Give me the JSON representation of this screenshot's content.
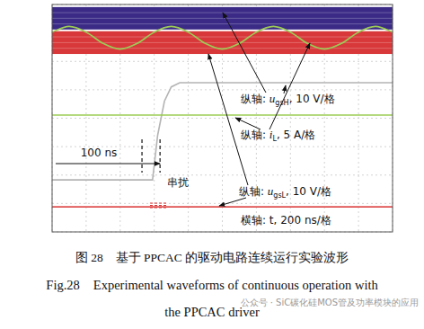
{
  "chart_data": {
    "type": "oscilloscope",
    "xlim": [
      0,
      10
    ],
    "ylim": [
      -4,
      4
    ],
    "xticks": [
      0,
      1,
      2,
      3,
      4,
      5,
      6,
      7,
      8,
      9,
      10
    ],
    "yticks": [
      -4,
      -3,
      -2,
      -1,
      0,
      1,
      2,
      3,
      4
    ],
    "grid": true,
    "tick_labels": false,
    "series": [
      {
        "type": "band",
        "color": "#3b2b86",
        "x": [
          0,
          10
        ],
        "low": [
          3.12,
          3.12
        ],
        "high": [
          3.91,
          3.91
        ]
      },
      {
        "type": "band",
        "color": "#d8383a",
        "x": [
          0,
          10
        ],
        "low": [
          2.26,
          2.26
        ],
        "high": [
          3.06,
          3.06
        ]
      },
      {
        "type": "line",
        "color": "#9ccc55",
        "x": [
          0,
          0.5,
          1,
          1.5,
          2,
          2.5,
          3,
          3.5,
          4,
          4.5,
          5,
          5.5,
          6,
          6.5,
          7,
          7.5,
          8,
          8.5,
          9,
          9.5,
          10
        ],
        "values": [
          3.03,
          3.23,
          3.03,
          2.63,
          2.43,
          2.63,
          3.03,
          3.23,
          3.03,
          2.63,
          2.43,
          2.63,
          3.03,
          3.23,
          3.03,
          2.63,
          2.43,
          2.63,
          3.03,
          3.23,
          3.03
        ]
      },
      {
        "type": "line",
        "color": "#b4b4b4",
        "x": [
          0,
          2.95,
          3.1,
          3.3,
          3.5,
          3.75,
          10
        ],
        "values": [
          -2.17,
          -2.17,
          -0.6,
          0.6,
          1.1,
          1.25,
          1.25
        ]
      },
      {
        "type": "line",
        "color": "#9ccc55",
        "x": [
          0,
          10
        ],
        "values": [
          0.11,
          0.11
        ]
      },
      {
        "type": "line",
        "color": "#e05050",
        "x": [
          0,
          10
        ],
        "values": [
          -3.12,
          -3.12
        ]
      }
    ],
    "cursors": [
      2.64,
      3.17
    ],
    "interval_label": "100 ns",
    "crosstalk_label": "串扰",
    "annotations": [
      {
        "before": "纵轴: ",
        "symbol": "u",
        "subscript": "gsH",
        "after": ", 10 V/格"
      },
      {
        "before": "纵轴: ",
        "symbol": "i",
        "subscript": "L",
        "after": ", 5 A/格"
      },
      {
        "before": "纵轴: ",
        "symbol": "u",
        "subscript": "gsL",
        "after": ", 10 V/格"
      }
    ],
    "x_label": "横轴: t, 200 ns/格"
  },
  "caption": {
    "zh": "图 28　基于 PPCAC 的驱动电路连续运行实验波形",
    "en": [
      "Fig.28　Experimental waveforms of continuous operation with",
      "the PPCAC driver"
    ]
  },
  "watermark": "公众号 · SiC碳化硅MOS管及功率模块的应用"
}
